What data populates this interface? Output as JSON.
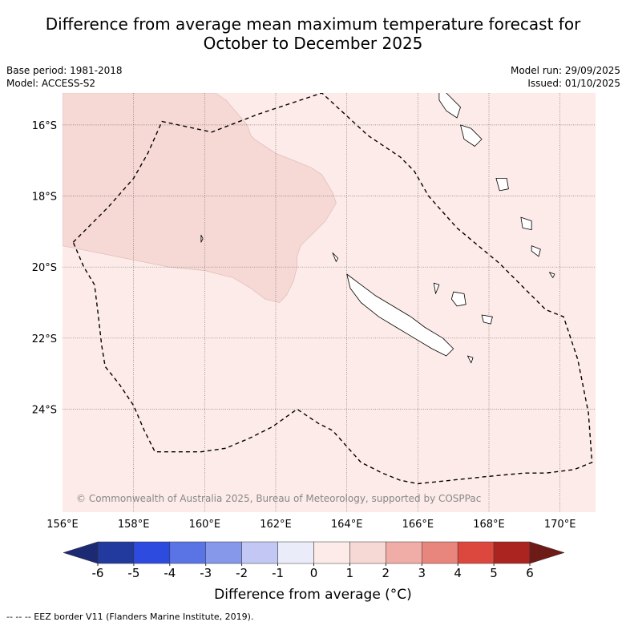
{
  "title_lines": [
    "Difference from average mean maximum temperature forecast for",
    "October to December 2025"
  ],
  "meta": {
    "base_period": "Base period: 1981-2018",
    "model": "Model: ACCESS-S2",
    "model_run": "Model run: 29/09/2025",
    "issued": "Issued: 01/10/2025"
  },
  "copyright": "© Commonwealth of Australia 2025, Bureau of Meteorology, supported by COSPPac",
  "footnote": "--  --  -- EEZ border V11 (Flanders Marine Institute, 2019).",
  "colors": {
    "ocean_0_1": "#fcebe8",
    "region_1_2": "#f6d8d5",
    "gridline": "#555555",
    "eez_line": "#000000"
  },
  "chart_data": {
    "type": "heatmap",
    "title": "Difference from average mean maximum temperature forecast for October to December 2025",
    "xlabel": "",
    "ylabel": "",
    "xlim": [
      156,
      171
    ],
    "ylim": [
      -26.9,
      -15.1
    ],
    "x_ticks": [
      156,
      158,
      160,
      162,
      164,
      166,
      168,
      170
    ],
    "x_tick_labels": [
      "156°E",
      "158°E",
      "160°E",
      "162°E",
      "164°E",
      "166°E",
      "168°E",
      "170°E"
    ],
    "y_ticks": [
      -16,
      -18,
      -20,
      -22,
      -24
    ],
    "y_tick_labels": [
      "16°S",
      "18°S",
      "20°S",
      "22°S",
      "24°S"
    ],
    "regions": [
      {
        "name": "anomaly 0 to 1 °C",
        "category": "0 to 1",
        "color": "#fcebe8",
        "extent": "entire domain"
      },
      {
        "name": "anomaly 1 to 2 °C",
        "category": "1 to 2",
        "color": "#f6d8d5",
        "polygon_lon_lat": [
          [
            156,
            -15.1
          ],
          [
            160.3,
            -15.1
          ],
          [
            160.6,
            -15.3
          ],
          [
            161.2,
            -16.0
          ],
          [
            161.3,
            -16.3
          ],
          [
            161.4,
            -16.4
          ],
          [
            162.0,
            -16.8
          ],
          [
            162.5,
            -17.0
          ],
          [
            163.0,
            -17.2
          ],
          [
            163.3,
            -17.4
          ],
          [
            163.6,
            -17.9
          ],
          [
            163.7,
            -18.2
          ],
          [
            163.4,
            -18.7
          ],
          [
            163.1,
            -19.0
          ],
          [
            162.7,
            -19.4
          ],
          [
            162.6,
            -19.7
          ],
          [
            162.6,
            -20.0
          ],
          [
            162.5,
            -20.4
          ],
          [
            162.3,
            -20.8
          ],
          [
            162.1,
            -21.0
          ],
          [
            161.7,
            -20.9
          ],
          [
            161.3,
            -20.6
          ],
          [
            160.8,
            -20.3
          ],
          [
            160.0,
            -20.1
          ],
          [
            159.0,
            -20.0
          ],
          [
            158.0,
            -19.8
          ],
          [
            157.0,
            -19.6
          ],
          [
            156.0,
            -19.4
          ]
        ]
      }
    ],
    "eez_border_lon_lat": [
      [
        156.3,
        -19.3
      ],
      [
        156.8,
        -18.8
      ],
      [
        157.3,
        -18.3
      ],
      [
        158.0,
        -17.5
      ],
      [
        158.4,
        -16.8
      ],
      [
        158.8,
        -15.9
      ],
      [
        160.2,
        -16.2
      ],
      [
        161.5,
        -15.7
      ],
      [
        163.3,
        -15.1
      ],
      [
        164.6,
        -16.3
      ],
      [
        165.5,
        -16.9
      ],
      [
        165.9,
        -17.3
      ],
      [
        166.3,
        -18.0
      ],
      [
        167.1,
        -18.9
      ],
      [
        168.3,
        -19.9
      ],
      [
        169.0,
        -20.6
      ],
      [
        169.6,
        -21.2
      ],
      [
        170.1,
        -21.4
      ],
      [
        170.5,
        -22.6
      ],
      [
        170.8,
        -24.1
      ],
      [
        170.9,
        -25.5
      ],
      [
        170.4,
        -25.7
      ],
      [
        169.6,
        -25.8
      ],
      [
        169.0,
        -25.8
      ],
      [
        167.9,
        -25.9
      ],
      [
        166.0,
        -26.1
      ],
      [
        165.5,
        -26.0
      ],
      [
        165.0,
        -25.8
      ],
      [
        164.4,
        -25.5
      ],
      [
        163.6,
        -24.6
      ],
      [
        163.2,
        -24.4
      ],
      [
        162.6,
        -24.0
      ],
      [
        161.9,
        -24.5
      ],
      [
        161.3,
        -24.8
      ],
      [
        160.6,
        -25.1
      ],
      [
        159.9,
        -25.2
      ],
      [
        159.2,
        -25.2
      ],
      [
        158.6,
        -25.2
      ],
      [
        158.3,
        -24.6
      ],
      [
        158.0,
        -23.9
      ],
      [
        157.6,
        -23.3
      ],
      [
        157.2,
        -22.8
      ],
      [
        157.1,
        -22.2
      ],
      [
        157.0,
        -21.3
      ],
      [
        156.9,
        -20.5
      ],
      [
        156.6,
        -20.0
      ],
      [
        156.3,
        -19.3
      ]
    ],
    "land": [
      {
        "name": "New Caledonia (Grande Terre)",
        "polygon_lon_lat": [
          [
            164.0,
            -20.2
          ],
          [
            164.4,
            -20.5
          ],
          [
            164.8,
            -20.8
          ],
          [
            165.3,
            -21.1
          ],
          [
            165.8,
            -21.4
          ],
          [
            166.2,
            -21.7
          ],
          [
            166.7,
            -22.0
          ],
          [
            167.0,
            -22.3
          ],
          [
            166.8,
            -22.5
          ],
          [
            166.4,
            -22.3
          ],
          [
            165.9,
            -22.0
          ],
          [
            165.4,
            -21.7
          ],
          [
            164.9,
            -21.4
          ],
          [
            164.4,
            -21.0
          ],
          [
            164.1,
            -20.6
          ],
          [
            164.0,
            -20.2
          ]
        ]
      },
      {
        "name": "Belep",
        "polygon_lon_lat": [
          [
            163.6,
            -19.6
          ],
          [
            163.75,
            -19.75
          ],
          [
            163.7,
            -19.85
          ],
          [
            163.6,
            -19.6
          ]
        ]
      },
      {
        "name": "Ouvea",
        "polygon_lon_lat": [
          [
            166.45,
            -20.45
          ],
          [
            166.6,
            -20.5
          ],
          [
            166.5,
            -20.75
          ],
          [
            166.45,
            -20.45
          ]
        ]
      },
      {
        "name": "Lifou",
        "polygon_lon_lat": [
          [
            167.0,
            -20.7
          ],
          [
            167.3,
            -20.75
          ],
          [
            167.35,
            -21.05
          ],
          [
            167.1,
            -21.1
          ],
          [
            166.95,
            -20.9
          ],
          [
            167.0,
            -20.7
          ]
        ]
      },
      {
        "name": "Mare",
        "polygon_lon_lat": [
          [
            167.8,
            -21.35
          ],
          [
            168.1,
            -21.4
          ],
          [
            168.05,
            -21.6
          ],
          [
            167.85,
            -21.55
          ],
          [
            167.8,
            -21.35
          ]
        ]
      },
      {
        "name": "Isle of Pines",
        "polygon_lon_lat": [
          [
            167.4,
            -22.5
          ],
          [
            167.55,
            -22.55
          ],
          [
            167.5,
            -22.7
          ],
          [
            167.4,
            -22.5
          ]
        ]
      },
      {
        "name": "Chesterfield Islands",
        "polygon_lon_lat": [
          [
            159.9,
            -19.1
          ],
          [
            159.95,
            -19.2
          ],
          [
            159.9,
            -19.3
          ],
          [
            159.9,
            -19.1
          ]
        ]
      },
      {
        "name": "Espiritu Santo",
        "polygon_lon_lat": [
          [
            166.6,
            -14.9
          ],
          [
            166.9,
            -15.2
          ],
          [
            167.2,
            -15.5
          ],
          [
            167.1,
            -15.8
          ],
          [
            166.8,
            -15.6
          ],
          [
            166.6,
            -15.3
          ],
          [
            166.6,
            -14.9
          ]
        ]
      },
      {
        "name": "Malakula",
        "polygon_lon_lat": [
          [
            167.2,
            -16.0
          ],
          [
            167.5,
            -16.1
          ],
          [
            167.8,
            -16.4
          ],
          [
            167.6,
            -16.6
          ],
          [
            167.3,
            -16.4
          ],
          [
            167.2,
            -16.0
          ]
        ]
      },
      {
        "name": "Efate",
        "polygon_lon_lat": [
          [
            168.2,
            -17.5
          ],
          [
            168.5,
            -17.5
          ],
          [
            168.55,
            -17.8
          ],
          [
            168.3,
            -17.85
          ],
          [
            168.2,
            -17.5
          ]
        ]
      },
      {
        "name": "Erromango",
        "polygon_lon_lat": [
          [
            168.9,
            -18.6
          ],
          [
            169.2,
            -18.7
          ],
          [
            169.2,
            -18.95
          ],
          [
            168.95,
            -18.9
          ],
          [
            168.9,
            -18.6
          ]
        ]
      },
      {
        "name": "Tanna",
        "polygon_lon_lat": [
          [
            169.2,
            -19.4
          ],
          [
            169.45,
            -19.5
          ],
          [
            169.4,
            -19.7
          ],
          [
            169.2,
            -19.55
          ],
          [
            169.2,
            -19.4
          ]
        ]
      },
      {
        "name": "Aneityum",
        "polygon_lon_lat": [
          [
            169.7,
            -20.15
          ],
          [
            169.85,
            -20.2
          ],
          [
            169.8,
            -20.3
          ],
          [
            169.7,
            -20.15
          ]
        ]
      }
    ],
    "colorbar": {
      "label": "Difference from average (°C)",
      "ticks": [
        -6,
        -5,
        -4,
        -3,
        -2,
        -1,
        0,
        1,
        2,
        3,
        4,
        5,
        6
      ],
      "tick_labels": [
        "-6",
        "-5",
        "-4",
        "-3",
        "-2",
        "-1",
        "0",
        "1",
        "2",
        "3",
        "4",
        "5",
        "6"
      ],
      "colors": [
        "#22399e",
        "#2e4be0",
        "#5a74e6",
        "#8598ea",
        "#c2c8f3",
        "#ebecf9",
        "#fcebe8",
        "#f6d8d5",
        "#f0aca7",
        "#e8857d",
        "#dc483e",
        "#ac2420"
      ],
      "extend_low_color": "#1b2a73",
      "extend_high_color": "#6e1a17"
    }
  }
}
